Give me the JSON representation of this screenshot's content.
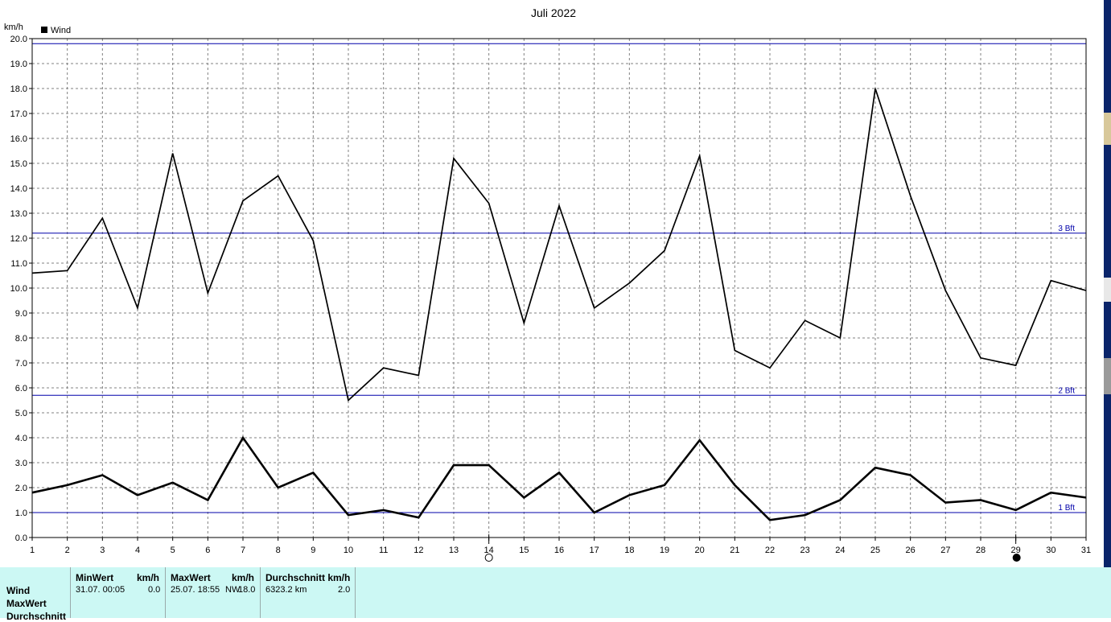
{
  "chart_data": {
    "type": "line",
    "title": "Juli 2022",
    "ylabel": "km/h",
    "xlabel": "",
    "x": [
      1,
      2,
      3,
      4,
      5,
      6,
      7,
      8,
      9,
      10,
      11,
      12,
      13,
      14,
      15,
      16,
      17,
      18,
      19,
      20,
      21,
      22,
      23,
      24,
      25,
      26,
      27,
      28,
      29,
      30,
      31
    ],
    "ylim": [
      0,
      20
    ],
    "y_ticks": [
      "0.0",
      "1.0",
      "2.0",
      "3.0",
      "4.0",
      "5.0",
      "6.0",
      "7.0",
      "8.0",
      "9.0",
      "10.0",
      "11.0",
      "12.0",
      "13.0",
      "14.0",
      "15.0",
      "16.0",
      "17.0",
      "18.0",
      "19.0",
      "20.0"
    ],
    "grid": true,
    "legend": {
      "position": "top-left",
      "entries": [
        "Wind"
      ]
    },
    "series": [
      {
        "role": "max",
        "color": "#000000",
        "values": [
          10.6,
          10.7,
          12.8,
          9.2,
          15.4,
          9.8,
          13.5,
          14.5,
          11.9,
          5.5,
          6.8,
          6.5,
          15.2,
          13.4,
          8.6,
          13.3,
          9.2,
          10.2,
          11.5,
          15.3,
          7.5,
          6.8,
          8.7,
          8.0,
          18.0,
          13.7,
          9.9,
          7.2,
          6.9,
          10.3,
          9.9
        ]
      },
      {
        "role": "average",
        "color": "#000000",
        "values": [
          1.8,
          2.1,
          2.5,
          1.7,
          2.2,
          1.5,
          4.0,
          2.0,
          2.6,
          0.9,
          1.1,
          0.8,
          2.9,
          2.9,
          1.6,
          2.6,
          1.0,
          1.7,
          2.1,
          3.9,
          2.1,
          0.7,
          0.9,
          1.5,
          2.8,
          2.5,
          1.4,
          1.5,
          1.1,
          1.8,
          1.6
        ]
      }
    ],
    "reference_lines": [
      {
        "label": "1 Bft",
        "y": 1.0,
        "color": "#0000aa"
      },
      {
        "label": "2 Bft",
        "y": 5.7,
        "color": "#0000aa"
      },
      {
        "label": "3 Bft",
        "y": 12.2,
        "color": "#0000aa"
      },
      {
        "label": "",
        "y": 19.8,
        "color": "#0000aa"
      }
    ],
    "moon_phases": [
      {
        "day": 14,
        "icon": "full-moon-icon"
      },
      {
        "day": 29,
        "icon": "new-moon-icon"
      }
    ]
  },
  "stats": {
    "rows": [
      "Wind",
      "MaxWert",
      "Durchschnitt"
    ],
    "min": {
      "header": "MinWert",
      "unit": "km/h",
      "datetime": "31.07.  00:05",
      "value": "0.0"
    },
    "max": {
      "header": "MaxWert",
      "unit": "km/h",
      "datetime": "25.07.  18:55",
      "dir": "NW",
      "value": "18.0"
    },
    "avg": {
      "header": "Durchschnitt km/h",
      "distance": "6323.2 km",
      "value": "2.0"
    }
  },
  "colors": {
    "stats_background": "#ccf8f4",
    "reference_line": "#0000aa",
    "line": "#000000"
  }
}
